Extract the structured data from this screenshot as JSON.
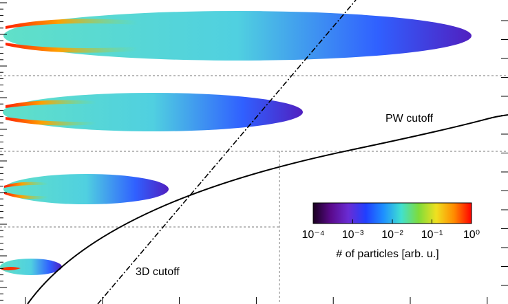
{
  "chart_data": {
    "type": "heatmap",
    "annotations": [
      "PW cutoff",
      "3D cutoff"
    ],
    "colorbar": {
      "label": "# of particles [arb. u.]",
      "log": true,
      "lim": [
        0.0001,
        1
      ],
      "ticks": [
        {
          "value": 0.0001,
          "label": "10⁻⁴"
        },
        {
          "value": 0.001,
          "label": "10⁻³"
        },
        {
          "value": 0.01,
          "label": "10⁻²"
        },
        {
          "value": 0.1,
          "label": "10⁻¹"
        },
        {
          "value": 1,
          "label": "10⁰"
        }
      ],
      "colors": [
        "#1a0020",
        "#5a0a8c",
        "#6a2cd4",
        "#2040ff",
        "#1e90ff",
        "#40e0d0",
        "#7fdc3a",
        "#f0e020",
        "#ff8c00",
        "#ff0000"
      ]
    }
  }
}
